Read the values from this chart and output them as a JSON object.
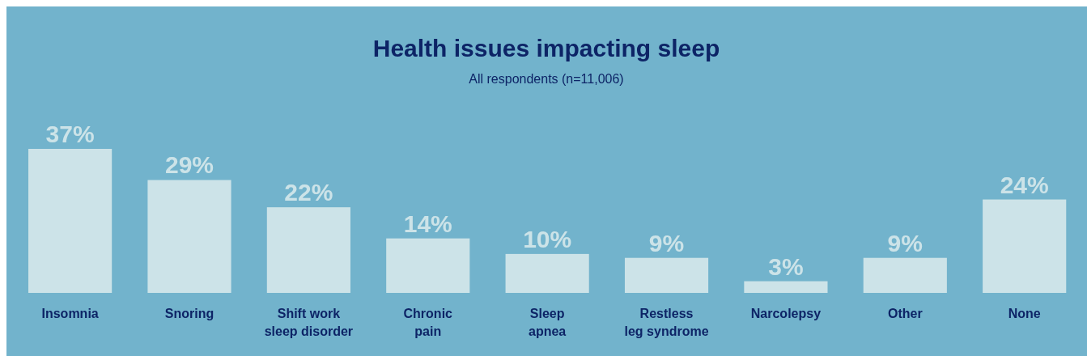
{
  "chart_data": {
    "type": "bar",
    "title": "Health issues impacting sleep",
    "subtitle": "All respondents (n=11,006)",
    "categories": [
      "Insomnia",
      "Snoring",
      "Shift work\nsleep disorder",
      "Chronic\npain",
      "Sleep\napnea",
      "Restless\nleg syndrome",
      "Narcolepsy",
      "Other",
      "None"
    ],
    "values": [
      37,
      29,
      22,
      14,
      10,
      9,
      3,
      9,
      24
    ],
    "value_labels": [
      "37%",
      "29%",
      "22%",
      "14%",
      "10%",
      "9%",
      "3%",
      "9%",
      "24%"
    ],
    "color": "#cce3e8"
  }
}
